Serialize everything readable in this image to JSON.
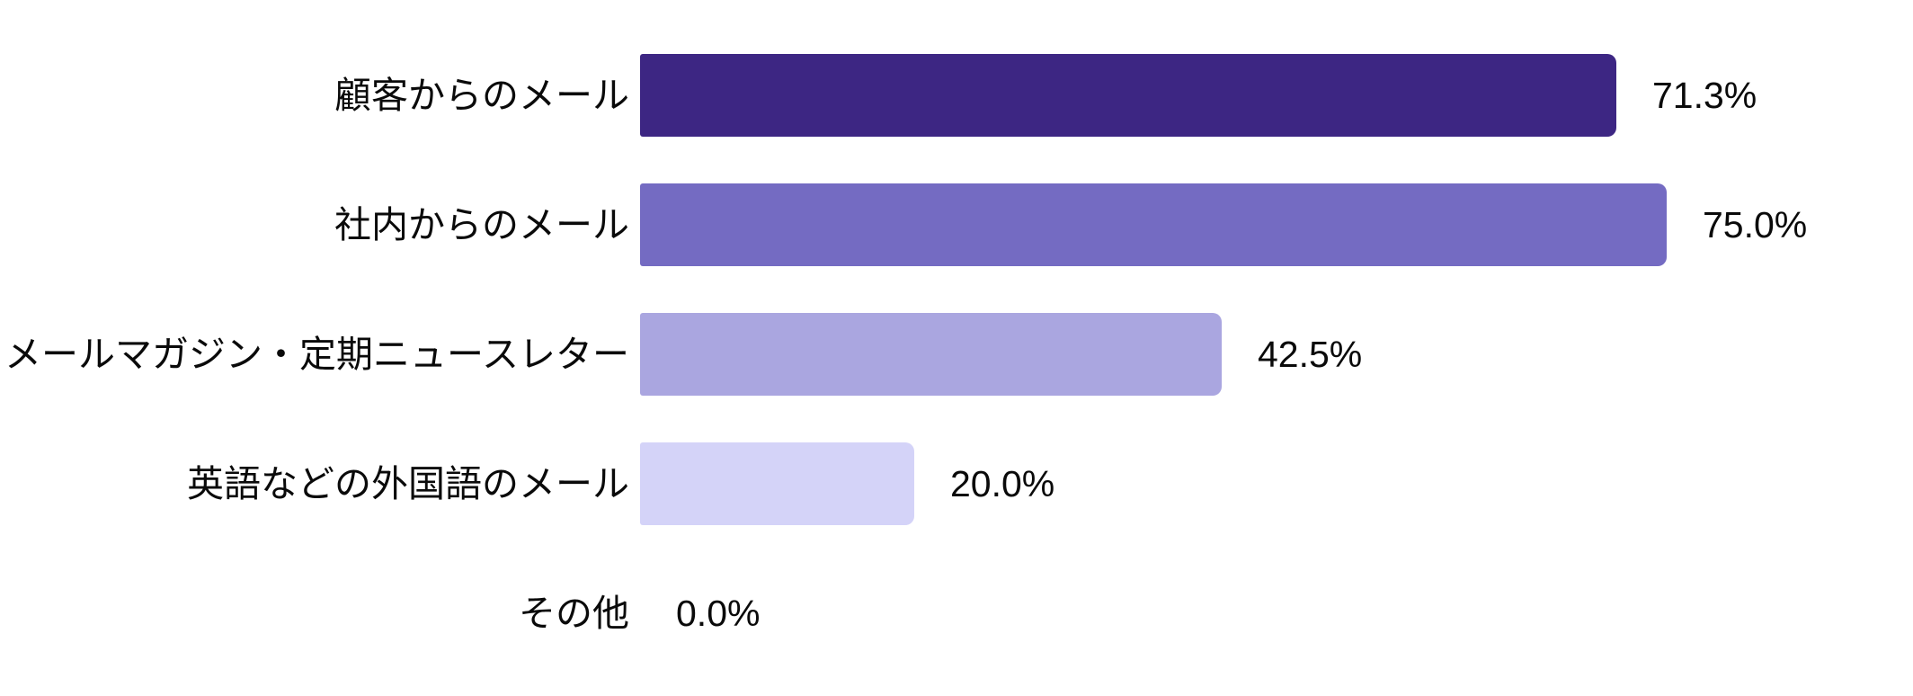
{
  "chart_data": {
    "type": "bar",
    "orientation": "horizontal",
    "title": "",
    "xlabel": "",
    "ylabel": "",
    "grid": false,
    "legend": false,
    "xlim": [
      0,
      100
    ],
    "value_suffix": "%",
    "categories": [
      "顧客からのメール",
      "社内からのメール",
      "メールマガジン・定期ニュースレター",
      "英語などの外国語のメール",
      "その他"
    ],
    "values": [
      71.3,
      75.0,
      42.5,
      20.0,
      0.0
    ],
    "value_labels": [
      "71.3%",
      "75.0%",
      "42.5%",
      "20.0%",
      "0.0%"
    ],
    "colors": [
      "#3D2683",
      "#746BC2",
      "#AAA6E0",
      "#D4D3F8",
      "none"
    ]
  }
}
